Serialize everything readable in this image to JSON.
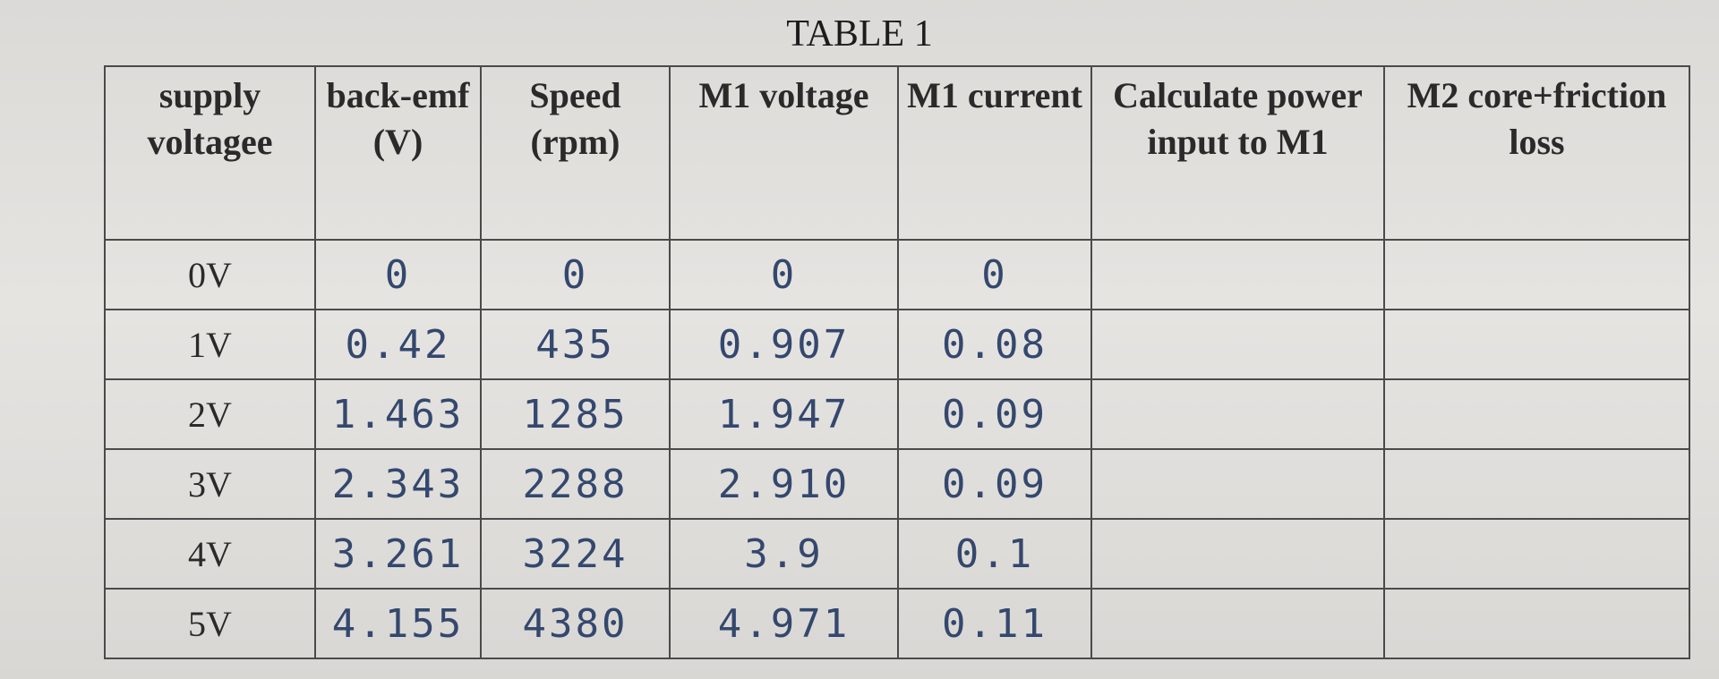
{
  "table": {
    "title": "TABLE 1",
    "headers": [
      "supply voltagee",
      "back-emf (V)",
      "Speed (rpm)",
      "M1 voltage",
      "M1 current",
      "Calculate power input to M1",
      "M2 core+friction loss"
    ],
    "rows": [
      [
        "0V",
        "0",
        "0",
        "0",
        "0"
      ],
      [
        "1V",
        "0.42",
        "435",
        "0.907",
        "0.08"
      ],
      [
        "2V",
        "1.463",
        "1285",
        "1.947",
        "0.09"
      ],
      [
        "3V",
        "2.343",
        "2288",
        "2.910",
        "0.09"
      ],
      [
        "4V",
        "3.261",
        "3224",
        "3.9",
        "0.1"
      ],
      [
        "5V",
        "4.155",
        "4380",
        "4.971",
        "0.11"
      ]
    ]
  }
}
